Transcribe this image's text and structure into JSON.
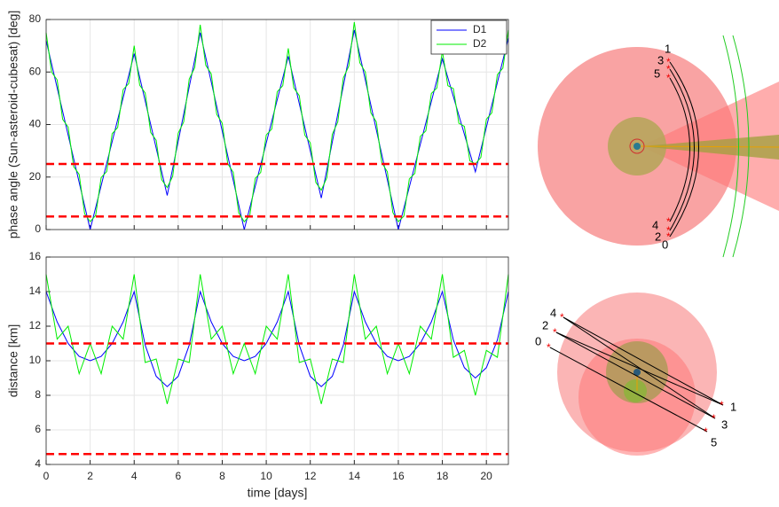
{
  "chart_data": [
    {
      "type": "line",
      "ylabel": "phase angle (Sun-asteroid-cubesat) [deg]",
      "xlim": [
        0,
        21
      ],
      "xticks": [
        0,
        2,
        4,
        6,
        8,
        10,
        12,
        14,
        16,
        18,
        20
      ],
      "xtick_labels": false,
      "ylim": [
        0,
        80
      ],
      "yticks": [
        0,
        20,
        40,
        60,
        80
      ],
      "grid": true,
      "legend": "upper right",
      "series": [
        {
          "name": "D1",
          "color": "#0000ff",
          "x": [
            0,
            2,
            4,
            5.5,
            7,
            9,
            11,
            12.5,
            14,
            16,
            18,
            19.5,
            21
          ],
          "values": [
            72,
            0,
            67,
            13,
            75,
            0,
            66,
            12,
            76,
            0,
            65,
            22,
            73
          ]
        },
        {
          "name": "D2",
          "color": "#00ee00",
          "x": [
            0,
            0.25,
            0.5,
            0.75,
            1,
            1.25,
            1.5,
            1.75,
            2,
            2.25,
            2.5,
            2.75,
            3,
            3.25,
            3.5,
            3.75,
            4,
            4.25,
            4.5,
            4.75,
            5,
            5.25,
            5.5,
            5.75,
            6,
            6.25,
            6.5,
            6.75,
            7,
            7.25,
            7.5,
            7.75,
            8,
            8.25,
            8.5,
            8.75,
            9,
            9.25,
            9.5,
            9.75,
            10,
            10.25,
            10.5,
            10.75,
            11,
            11.25,
            11.5,
            11.75,
            12,
            12.25,
            12.5,
            12.75,
            13,
            13.25,
            13.5,
            13.75,
            14,
            14.25,
            14.5,
            14.75,
            15,
            15.25,
            15.5,
            15.75,
            16,
            16.25,
            16.5,
            16.75,
            17,
            17.25,
            17.5,
            17.75,
            18,
            18.25,
            18.5,
            18.75,
            19,
            19.25,
            19.5,
            19.75,
            20,
            20.25,
            20.5,
            20.75,
            21
          ],
          "values": [
            75,
            60,
            57,
            42,
            39,
            24,
            21,
            6,
            3,
            5.4,
            19.8,
            22.1,
            36.5,
            38.9,
            53.3,
            55.6,
            70,
            55,
            52,
            37,
            34,
            19,
            16,
            20.3,
            36.7,
            41,
            57.3,
            61.7,
            78,
            62.6,
            59.3,
            43.9,
            40.5,
            25.1,
            21.8,
            6.4,
            3,
            5.3,
            19.5,
            21.8,
            36,
            38.3,
            52.5,
            54.8,
            69,
            54,
            51,
            36,
            33,
            18,
            15,
            19.7,
            36.3,
            41,
            57.7,
            62.3,
            79,
            63.5,
            60,
            44.5,
            41,
            25.5,
            22,
            6.5,
            3,
            5.1,
            19.3,
            21.4,
            35.5,
            37.6,
            51.8,
            53.9,
            68,
            54.8,
            53.7,
            40.5,
            39.3,
            26.2,
            25,
            27.5,
            42,
            44.5,
            59,
            61.5,
            76
          ]
        }
      ],
      "hlines": [
        {
          "value": 25,
          "color": "#ff0000"
        },
        {
          "value": 5,
          "color": "#ff0000"
        }
      ]
    },
    {
      "type": "line",
      "ylabel": "distance [km]",
      "xlabel": "time [days]",
      "xlim": [
        0,
        21
      ],
      "xticks": [
        0,
        2,
        4,
        6,
        8,
        10,
        12,
        14,
        16,
        18,
        20
      ],
      "xtick_labels": true,
      "ylim": [
        4,
        16
      ],
      "yticks": [
        4,
        6,
        8,
        10,
        12,
        14,
        16
      ],
      "grid": true,
      "legend": false,
      "series": [
        {
          "name": "D1",
          "color": "#0000ff",
          "x": [
            0,
            0.5,
            1,
            1.5,
            2,
            2.5,
            3,
            3.5,
            4,
            4.5,
            5,
            5.5,
            6,
            6.5,
            7,
            7.5,
            8,
            8.5,
            9,
            9.5,
            10,
            10.5,
            11,
            11.5,
            12,
            12.5,
            13,
            13.5,
            14,
            14.5,
            15,
            15.5,
            16,
            16.5,
            17,
            17.5,
            18,
            18.5,
            19,
            19.5,
            20,
            20.5,
            21
          ],
          "values": [
            14,
            12.25,
            11,
            10.25,
            10,
            10.25,
            11,
            12.25,
            14,
            10.9,
            9.1,
            8.5,
            9.1,
            10.9,
            14,
            12.25,
            11,
            10.25,
            10,
            10.25,
            11,
            12.25,
            14,
            10.9,
            9.1,
            8.5,
            9.1,
            10.9,
            14,
            12.25,
            11,
            10.25,
            10,
            10.25,
            11,
            12.25,
            14,
            11.2,
            9.6,
            9,
            9.6,
            11.2,
            14
          ]
        },
        {
          "name": "D2",
          "color": "#00ee00",
          "x": [
            0,
            0.5,
            1,
            1.5,
            2,
            2.5,
            3,
            3.5,
            4,
            4.5,
            5,
            5.5,
            6,
            6.5,
            7,
            7.5,
            8,
            8.5,
            9,
            9.5,
            10,
            10.5,
            11,
            11.5,
            12,
            12.5,
            13,
            13.5,
            14,
            14.5,
            15,
            15.5,
            16,
            16.5,
            17,
            17.5,
            18,
            18.5,
            19,
            19.5,
            20,
            20.5,
            21
          ],
          "values": [
            15,
            11.25,
            12,
            9.25,
            11,
            9.25,
            12,
            11.25,
            15,
            9.9,
            10.1,
            7.5,
            10.1,
            9.9,
            15,
            11.25,
            12,
            9.25,
            11,
            9.25,
            12,
            11.25,
            15,
            9.9,
            10.1,
            7.5,
            10.1,
            9.9,
            15,
            11.25,
            12,
            9.25,
            11,
            9.25,
            12,
            11.25,
            15,
            10.2,
            10.6,
            8,
            10.6,
            10.2,
            15
          ]
        }
      ],
      "hlines": [
        {
          "value": 11,
          "color": "#ff0000"
        },
        {
          "value": 4.6,
          "color": "#ff0000"
        }
      ]
    }
  ],
  "diagrams": [
    {
      "labels": [
        "1",
        "3",
        "5",
        "4",
        "2",
        "0"
      ]
    },
    {
      "labels": [
        "4",
        "2",
        "0",
        "1",
        "3",
        "5"
      ]
    }
  ]
}
